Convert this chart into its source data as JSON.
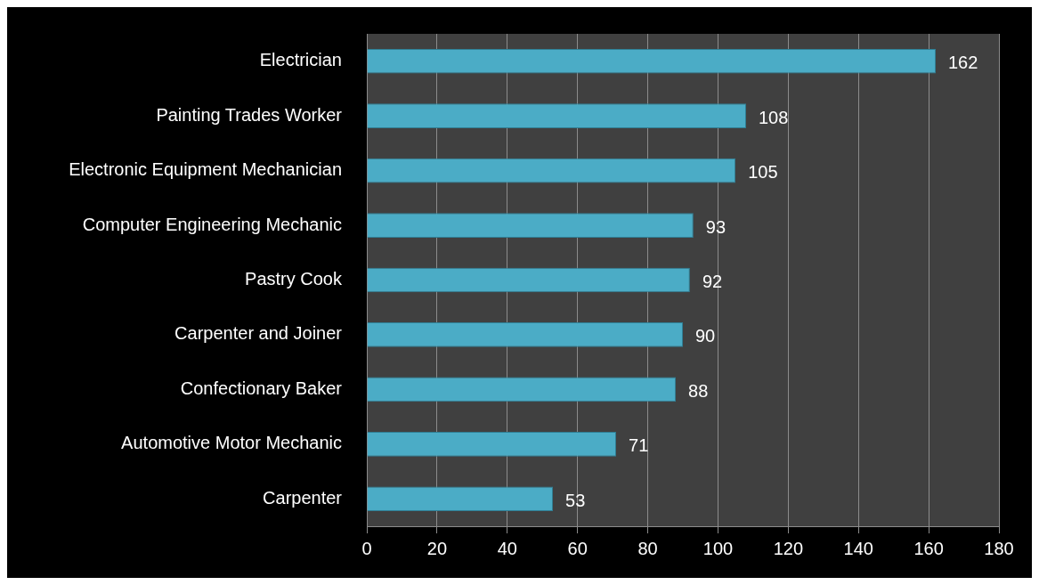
{
  "chart_data": {
    "type": "bar",
    "orientation": "horizontal",
    "categories": [
      "Electrician",
      "Painting Trades Worker",
      "Electronic Equipment Mechanician",
      "Computer Engineering Mechanic",
      "Pastry Cook",
      "Carpenter and Joiner",
      "Confectionary Baker",
      "Automotive Motor Mechanic",
      "Carpenter"
    ],
    "values": [
      162,
      108,
      105,
      93,
      92,
      90,
      88,
      71,
      53
    ],
    "color": "#4bacc6",
    "xlim": [
      0,
      180
    ],
    "xticks": [
      0,
      20,
      40,
      60,
      80,
      100,
      120,
      140,
      160,
      180
    ],
    "grid": "x",
    "data_labels": true,
    "legend": false
  }
}
